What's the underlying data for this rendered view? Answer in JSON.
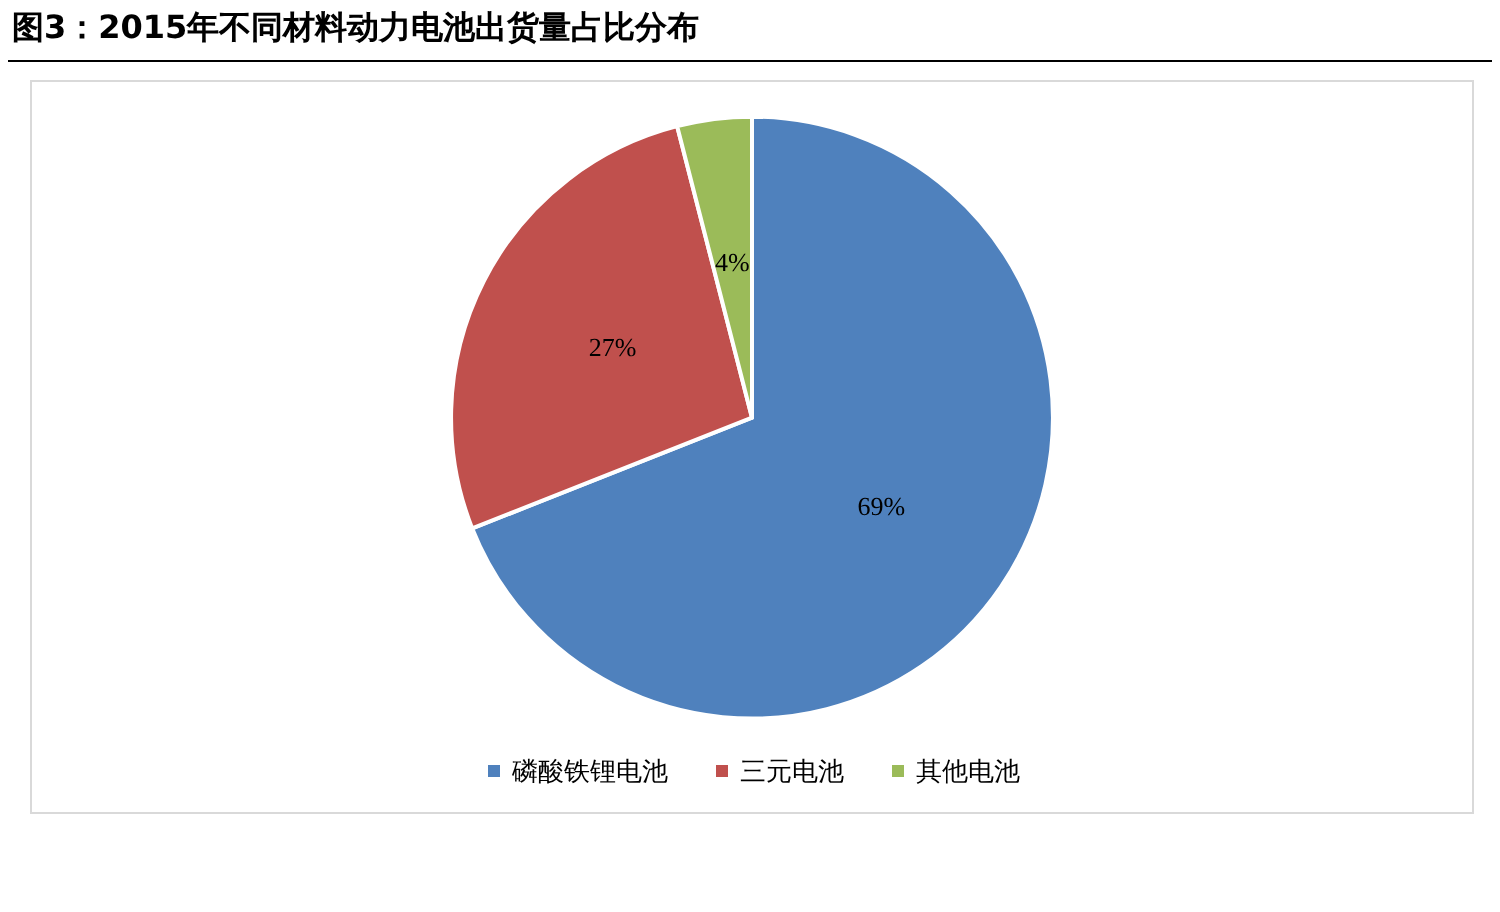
{
  "chart_data": {
    "type": "pie",
    "title": "图3：2015年不同材料动力电池出货量占比分布",
    "categories": [
      "磷酸铁锂电池",
      "三元电池",
      "其他电池"
    ],
    "values": [
      69,
      27,
      4
    ],
    "colors": [
      "#4f81bd",
      "#c0504d",
      "#9bbb59"
    ],
    "value_labels": [
      "69%",
      "27%",
      "4%"
    ],
    "legend": "bottom"
  }
}
